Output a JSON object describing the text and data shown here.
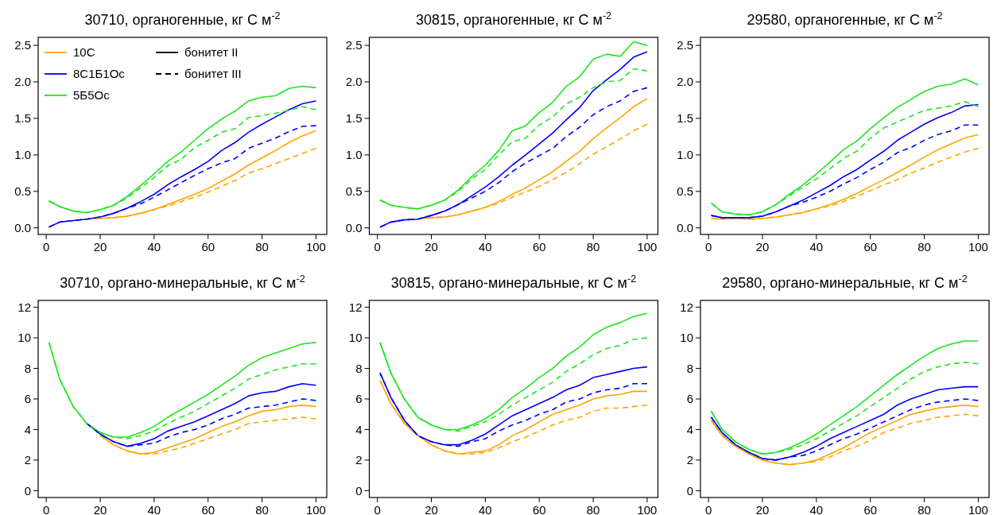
{
  "chart_data": [
    {
      "type": "line",
      "title": "30710, органогенные, кг С м$^{-2}$",
      "legend": "top left",
      "annotations": [
        "бонитет II",
        "бонитет III"
      ],
      "xlim": [
        -3,
        104
      ],
      "xticks": [
        0,
        20,
        40,
        60,
        80,
        100
      ],
      "ylim": [
        -0.09,
        2.61
      ],
      "yticks": [
        {
          "value": 0,
          "label": "0.0"
        },
        0.5,
        {
          "value": 1,
          "label": "1.0"
        },
        1.5,
        {
          "value": 2,
          "label": "2.0"
        },
        2.5
      ],
      "grid": false,
      "x": [
        1,
        5,
        10,
        15,
        20,
        25,
        30,
        35,
        40,
        45,
        50,
        55,
        60,
        65,
        70,
        75,
        80,
        85,
        90,
        95,
        100
      ],
      "series": [
        {
          "name": "10С",
          "color": "#ffa500",
          "line_style": "solid",
          "values": [
            null,
            null,
            null,
            0.12,
            0.13,
            0.14,
            0.16,
            0.2,
            0.25,
            0.32,
            0.39,
            0.46,
            0.54,
            0.64,
            0.74,
            0.86,
            0.96,
            1.06,
            1.17,
            1.26,
            1.33
          ]
        },
        {
          "color": "#ffa500",
          "line_style": "dashed",
          "values": [
            null,
            null,
            null,
            0.12,
            0.13,
            0.14,
            0.16,
            0.2,
            0.25,
            0.3,
            0.36,
            0.42,
            0.49,
            0.57,
            0.65,
            0.75,
            0.81,
            0.88,
            0.95,
            1.02,
            1.09
          ]
        },
        {
          "name": "8С1Б1Ос",
          "color": "#0000ff",
          "line_style": "solid",
          "values": [
            0.01,
            0.08,
            0.1,
            0.12,
            0.15,
            0.2,
            0.27,
            0.36,
            0.46,
            0.59,
            0.7,
            0.8,
            0.91,
            1.06,
            1.17,
            1.31,
            1.42,
            1.52,
            1.62,
            1.7,
            1.74
          ]
        },
        {
          "color": "#0000ff",
          "line_style": "dashed",
          "values": [
            0.01,
            0.08,
            0.1,
            0.12,
            0.15,
            0.2,
            0.27,
            0.33,
            0.42,
            0.52,
            0.62,
            0.72,
            0.81,
            0.89,
            0.95,
            1.09,
            1.16,
            1.23,
            1.32,
            1.39,
            1.4
          ]
        },
        {
          "name": "5Б5Ос",
          "color": "#1ee61e",
          "line_style": "solid",
          "values": [
            0.37,
            0.29,
            0.23,
            0.21,
            0.25,
            0.31,
            0.43,
            0.58,
            0.74,
            0.91,
            1.04,
            1.2,
            1.36,
            1.49,
            1.6,
            1.74,
            1.79,
            1.81,
            1.91,
            1.94,
            1.92
          ]
        },
        {
          "color": "#1ee61e",
          "line_style": "dashed",
          "values": [
            0.37,
            0.29,
            0.23,
            0.21,
            0.25,
            0.31,
            0.41,
            0.55,
            0.69,
            0.85,
            0.94,
            1.1,
            1.2,
            1.31,
            1.36,
            1.51,
            1.54,
            1.57,
            1.61,
            1.66,
            1.62
          ]
        }
      ]
    },
    {
      "type": "line",
      "title": "30815, органогенные, кг С м$^{-2}$",
      "xlim": [
        -3,
        104
      ],
      "xticks": [
        0,
        20,
        40,
        60,
        80,
        100
      ],
      "ylim": [
        -0.09,
        2.61
      ],
      "yticks": [
        {
          "value": 0,
          "label": "0.0"
        },
        0.5,
        {
          "value": 1,
          "label": "1.0"
        },
        1.5,
        {
          "value": 2,
          "label": "2.0"
        },
        2.5
      ],
      "grid": false,
      "x": [
        1,
        5,
        10,
        15,
        20,
        25,
        30,
        35,
        40,
        45,
        50,
        55,
        60,
        65,
        70,
        75,
        80,
        85,
        90,
        95,
        100
      ],
      "series": [
        {
          "color": "#ffa500",
          "line_style": "solid",
          "values": [
            null,
            null,
            null,
            0.12,
            0.14,
            0.15,
            0.18,
            0.23,
            0.28,
            0.36,
            0.46,
            0.55,
            0.66,
            0.77,
            0.91,
            1.05,
            1.22,
            1.37,
            1.51,
            1.66,
            1.77
          ]
        },
        {
          "color": "#ffa500",
          "line_style": "dashed",
          "values": [
            null,
            null,
            null,
            0.12,
            0.14,
            0.15,
            0.18,
            0.23,
            0.28,
            0.34,
            0.42,
            0.49,
            0.57,
            0.66,
            0.76,
            0.88,
            1.01,
            1.11,
            1.22,
            1.33,
            1.42
          ]
        },
        {
          "color": "#0000ff",
          "line_style": "solid",
          "values": [
            0.01,
            0.08,
            0.11,
            0.12,
            0.17,
            0.23,
            0.32,
            0.44,
            0.56,
            0.7,
            0.86,
            1.0,
            1.15,
            1.3,
            1.48,
            1.65,
            1.88,
            2.03,
            2.17,
            2.34,
            2.41
          ]
        },
        {
          "color": "#0000ff",
          "line_style": "dashed",
          "values": [
            0.01,
            0.08,
            0.11,
            0.12,
            0.17,
            0.23,
            0.32,
            0.41,
            0.5,
            0.62,
            0.77,
            0.89,
            0.99,
            1.09,
            1.25,
            1.38,
            1.55,
            1.66,
            1.74,
            1.87,
            1.92
          ]
        },
        {
          "color": "#1ee61e",
          "line_style": "solid",
          "values": [
            0.38,
            0.31,
            0.28,
            0.26,
            0.31,
            0.38,
            0.52,
            0.7,
            0.86,
            1.06,
            1.33,
            1.4,
            1.58,
            1.72,
            1.94,
            2.07,
            2.31,
            2.38,
            2.35,
            2.55,
            2.5
          ]
        },
        {
          "color": "#1ee61e",
          "line_style": "dashed",
          "values": [
            0.38,
            0.31,
            0.28,
            0.26,
            0.31,
            0.38,
            0.5,
            0.67,
            0.8,
            1.0,
            1.18,
            1.23,
            1.41,
            1.52,
            1.7,
            1.79,
            1.92,
            2.0,
            2.02,
            2.18,
            2.15
          ]
        }
      ]
    },
    {
      "type": "line",
      "title": "29580, органогенные, кг С м$^{-2}$",
      "xlim": [
        -3,
        104
      ],
      "xticks": [
        0,
        20,
        40,
        60,
        80,
        100
      ],
      "ylim": [
        -0.09,
        2.61
      ],
      "yticks": [
        {
          "value": 0,
          "label": "0.0"
        },
        0.5,
        {
          "value": 1,
          "label": "1.0"
        },
        1.5,
        {
          "value": 2,
          "label": "2.0"
        },
        2.5
      ],
      "grid": false,
      "x": [
        1,
        5,
        10,
        15,
        20,
        25,
        30,
        35,
        40,
        45,
        50,
        55,
        60,
        65,
        70,
        75,
        80,
        85,
        90,
        95,
        100
      ],
      "series": [
        {
          "color": "#ffa500",
          "line_style": "solid",
          "values": [
            0.13,
            0.12,
            0.13,
            0.12,
            0.13,
            0.15,
            0.18,
            0.21,
            0.26,
            0.32,
            0.39,
            0.47,
            0.57,
            0.66,
            0.76,
            0.86,
            0.97,
            1.07,
            1.15,
            1.23,
            1.28
          ]
        },
        {
          "color": "#ffa500",
          "line_style": "dashed",
          "values": [
            0.13,
            0.12,
            0.13,
            0.12,
            0.13,
            0.15,
            0.18,
            0.21,
            0.26,
            0.3,
            0.36,
            0.43,
            0.51,
            0.59,
            0.66,
            0.75,
            0.82,
            0.9,
            0.97,
            1.04,
            1.09
          ]
        },
        {
          "color": "#0000ff",
          "line_style": "solid",
          "values": [
            0.17,
            0.14,
            0.14,
            0.14,
            0.16,
            0.22,
            0.3,
            0.38,
            0.48,
            0.58,
            0.7,
            0.8,
            0.93,
            1.05,
            1.2,
            1.31,
            1.42,
            1.51,
            1.58,
            1.67,
            1.69
          ]
        },
        {
          "color": "#0000ff",
          "line_style": "dashed",
          "values": [
            0.17,
            0.14,
            0.14,
            0.14,
            0.16,
            0.22,
            0.3,
            0.35,
            0.42,
            0.5,
            0.6,
            0.69,
            0.8,
            0.9,
            1.03,
            1.1,
            1.2,
            1.28,
            1.33,
            1.41,
            1.41
          ]
        },
        {
          "color": "#1ee61e",
          "line_style": "solid",
          "values": [
            0.34,
            0.22,
            0.19,
            0.18,
            0.22,
            0.32,
            0.46,
            0.59,
            0.74,
            0.9,
            1.07,
            1.19,
            1.36,
            1.51,
            1.65,
            1.76,
            1.87,
            1.94,
            1.97,
            2.04,
            1.96
          ]
        },
        {
          "color": "#1ee61e",
          "line_style": "dashed",
          "values": [
            0.34,
            0.22,
            0.19,
            0.18,
            0.22,
            0.32,
            0.44,
            0.56,
            0.67,
            0.81,
            0.95,
            1.05,
            1.23,
            1.37,
            1.45,
            1.53,
            1.61,
            1.64,
            1.67,
            1.73,
            1.66
          ]
        }
      ]
    },
    {
      "type": "line",
      "title": "30710, органо-минеральные, кг С м$^{-2}$",
      "xlim": [
        -3,
        104
      ],
      "xticks": [
        0,
        20,
        40,
        60,
        80,
        100
      ],
      "ylim": [
        -0.45,
        12.45
      ],
      "yticks": [
        0,
        2,
        4,
        6,
        8,
        10,
        12
      ],
      "grid": false,
      "x": [
        1,
        5,
        10,
        15,
        20,
        25,
        30,
        35,
        40,
        45,
        50,
        55,
        60,
        65,
        70,
        75,
        80,
        85,
        90,
        95,
        100
      ],
      "series": [
        {
          "color": "#ffa500",
          "line_style": "solid",
          "values": [
            null,
            null,
            null,
            null,
            3.6,
            3.0,
            2.6,
            2.4,
            2.5,
            2.8,
            3.1,
            3.4,
            3.8,
            4.2,
            4.5,
            4.9,
            5.2,
            5.3,
            5.5,
            5.6,
            5.5
          ]
        },
        {
          "color": "#ffa500",
          "line_style": "dashed",
          "values": [
            null,
            null,
            null,
            null,
            3.6,
            3.0,
            2.6,
            2.4,
            2.4,
            2.6,
            2.8,
            3.1,
            3.4,
            3.7,
            4.0,
            4.4,
            4.5,
            4.6,
            4.7,
            4.8,
            4.7
          ]
        },
        {
          "color": "#0000ff",
          "line_style": "solid",
          "values": [
            null,
            null,
            null,
            4.4,
            3.7,
            3.2,
            2.9,
            3.1,
            3.4,
            3.9,
            4.2,
            4.5,
            4.9,
            5.3,
            5.7,
            6.2,
            6.4,
            6.5,
            6.8,
            7.0,
            6.9
          ]
        },
        {
          "color": "#0000ff",
          "line_style": "dashed",
          "values": [
            null,
            null,
            null,
            4.4,
            3.7,
            3.2,
            2.9,
            3.0,
            3.1,
            3.5,
            3.8,
            4.0,
            4.3,
            4.7,
            5.0,
            5.4,
            5.5,
            5.6,
            5.8,
            6.0,
            5.9
          ]
        },
        {
          "color": "#1ee61e",
          "line_style": "solid",
          "values": [
            9.7,
            7.3,
            5.5,
            4.4,
            3.8,
            3.5,
            3.5,
            3.8,
            4.2,
            4.8,
            5.3,
            5.8,
            6.3,
            6.9,
            7.5,
            8.2,
            8.7,
            9.0,
            9.3,
            9.6,
            9.7
          ]
        },
        {
          "color": "#1ee61e",
          "line_style": "dashed",
          "values": [
            9.7,
            7.3,
            5.5,
            4.4,
            3.8,
            3.5,
            3.4,
            3.6,
            3.9,
            4.4,
            4.8,
            5.2,
            5.7,
            6.2,
            6.7,
            7.3,
            7.6,
            7.9,
            8.1,
            8.3,
            8.3
          ]
        }
      ]
    },
    {
      "type": "line",
      "title": "30815, органо-минеральные, кг С м$^{-2}$",
      "xlim": [
        -3,
        104
      ],
      "xticks": [
        0,
        20,
        40,
        60,
        80,
        100
      ],
      "ylim": [
        -0.45,
        12.45
      ],
      "yticks": [
        0,
        2,
        4,
        6,
        8,
        10,
        12
      ],
      "grid": false,
      "x": [
        1,
        5,
        10,
        15,
        20,
        25,
        30,
        35,
        40,
        45,
        50,
        55,
        60,
        65,
        70,
        75,
        80,
        85,
        90,
        95,
        100
      ],
      "series": [
        {
          "color": "#ffa500",
          "line_style": "solid",
          "values": [
            7.2,
            5.7,
            4.4,
            3.6,
            3.0,
            2.6,
            2.4,
            2.5,
            2.6,
            3.0,
            3.6,
            4.0,
            4.5,
            5.0,
            5.3,
            5.6,
            6.0,
            6.2,
            6.3,
            6.5,
            6.5
          ]
        },
        {
          "color": "#ffa500",
          "line_style": "dashed",
          "values": [
            7.2,
            5.7,
            4.4,
            3.6,
            3.0,
            2.6,
            2.4,
            2.4,
            2.5,
            2.8,
            3.2,
            3.5,
            3.9,
            4.3,
            4.6,
            4.8,
            5.2,
            5.4,
            5.4,
            5.5,
            5.6
          ]
        },
        {
          "color": "#0000ff",
          "line_style": "solid",
          "values": [
            7.7,
            6.1,
            4.6,
            3.6,
            3.2,
            3.0,
            3.0,
            3.3,
            3.7,
            4.3,
            4.9,
            5.3,
            5.7,
            6.1,
            6.6,
            6.9,
            7.4,
            7.6,
            7.8,
            8.0,
            8.1
          ]
        },
        {
          "color": "#0000ff",
          "line_style": "dashed",
          "values": [
            7.7,
            6.1,
            4.6,
            3.6,
            3.2,
            3.0,
            2.9,
            3.2,
            3.4,
            3.9,
            4.3,
            4.6,
            5.0,
            5.3,
            5.8,
            6.0,
            6.4,
            6.6,
            6.7,
            7.0,
            7.0
          ]
        },
        {
          "color": "#1ee61e",
          "line_style": "solid",
          "values": [
            9.7,
            7.7,
            6.0,
            4.8,
            4.3,
            4.0,
            4.0,
            4.3,
            4.7,
            5.3,
            6.1,
            6.7,
            7.4,
            8.0,
            8.8,
            9.4,
            10.2,
            10.7,
            11.0,
            11.4,
            11.6
          ]
        },
        {
          "color": "#1ee61e",
          "line_style": "dashed",
          "values": [
            9.7,
            7.7,
            6.0,
            4.8,
            4.3,
            4.0,
            3.9,
            4.2,
            4.5,
            5.0,
            5.6,
            6.1,
            6.6,
            7.1,
            7.8,
            8.3,
            8.9,
            9.3,
            9.5,
            9.9,
            10.0
          ]
        }
      ]
    },
    {
      "type": "line",
      "title": "29580, органо-минеральные, кг С м$^{-2}$",
      "xlim": [
        -3,
        104
      ],
      "xticks": [
        0,
        20,
        40,
        60,
        80,
        100
      ],
      "ylim": [
        -0.45,
        12.45
      ],
      "yticks": [
        0,
        2,
        4,
        6,
        8,
        10,
        12
      ],
      "grid": false,
      "x": [
        1,
        5,
        10,
        15,
        20,
        25,
        30,
        35,
        40,
        45,
        50,
        55,
        60,
        65,
        70,
        75,
        80,
        85,
        90,
        95,
        100
      ],
      "series": [
        {
          "color": "#ffa500",
          "line_style": "solid",
          "values": [
            4.6,
            3.6,
            2.9,
            2.4,
            2.0,
            1.8,
            1.7,
            1.8,
            2.0,
            2.4,
            2.8,
            3.3,
            3.8,
            4.2,
            4.6,
            5.0,
            5.2,
            5.4,
            5.5,
            5.6,
            5.5
          ]
        },
        {
          "color": "#ffa500",
          "line_style": "dashed",
          "values": [
            4.6,
            3.6,
            2.9,
            2.4,
            2.0,
            1.8,
            1.7,
            1.8,
            1.9,
            2.2,
            2.6,
            2.9,
            3.3,
            3.8,
            4.1,
            4.4,
            4.6,
            4.8,
            4.9,
            5.0,
            4.9
          ]
        },
        {
          "color": "#0000ff",
          "line_style": "solid",
          "values": [
            4.8,
            3.8,
            3.0,
            2.5,
            2.1,
            2.0,
            2.2,
            2.5,
            2.9,
            3.4,
            3.8,
            4.2,
            4.6,
            5.0,
            5.6,
            6.0,
            6.3,
            6.6,
            6.7,
            6.8,
            6.8
          ]
        },
        {
          "color": "#0000ff",
          "line_style": "dashed",
          "values": [
            4.8,
            3.8,
            3.0,
            2.5,
            2.1,
            2.0,
            2.2,
            2.3,
            2.6,
            3.0,
            3.4,
            3.7,
            4.1,
            4.5,
            4.9,
            5.3,
            5.6,
            5.8,
            5.9,
            6.0,
            5.9
          ]
        },
        {
          "color": "#1ee61e",
          "line_style": "solid",
          "values": [
            5.2,
            4.0,
            3.2,
            2.7,
            2.4,
            2.5,
            2.8,
            3.2,
            3.7,
            4.3,
            4.9,
            5.5,
            6.2,
            6.9,
            7.6,
            8.2,
            8.8,
            9.3,
            9.6,
            9.8,
            9.8
          ]
        },
        {
          "color": "#1ee61e",
          "line_style": "dashed",
          "values": [
            5.2,
            4.0,
            3.2,
            2.7,
            2.4,
            2.5,
            2.7,
            3.0,
            3.4,
            3.9,
            4.4,
            4.9,
            5.5,
            6.1,
            6.7,
            7.3,
            7.8,
            8.1,
            8.3,
            8.4,
            8.3
          ]
        }
      ]
    }
  ]
}
